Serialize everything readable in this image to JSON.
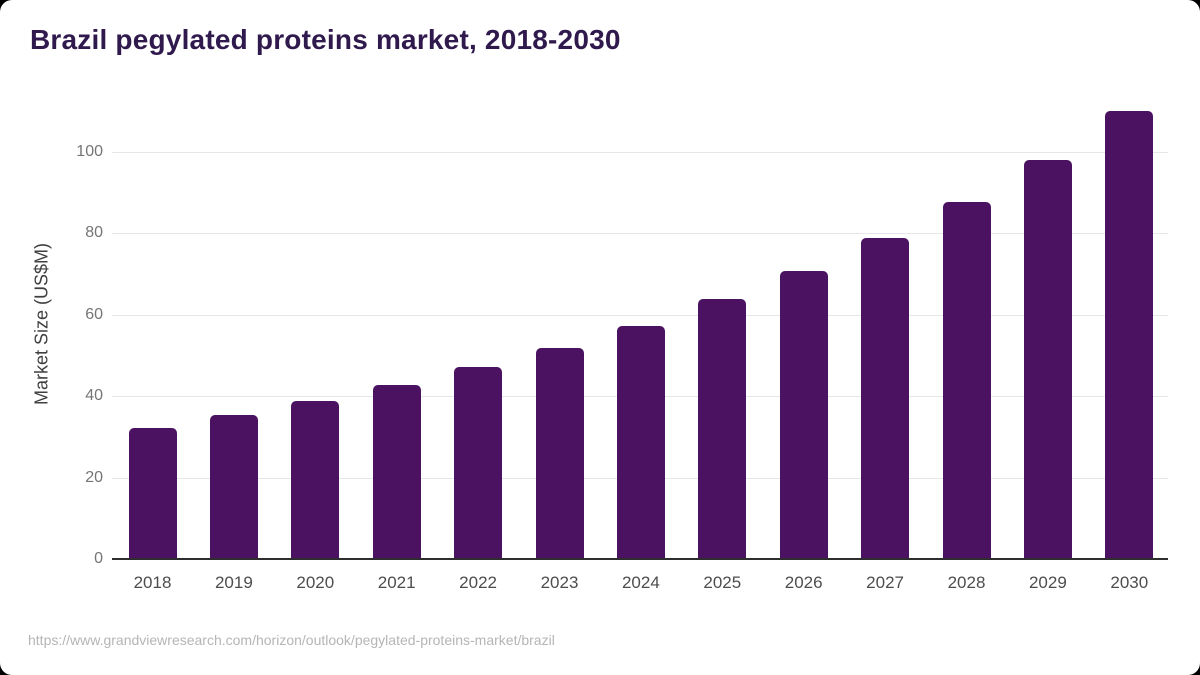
{
  "page": {
    "title": "Brazil pegylated proteins market, 2018-2030",
    "source_url": "https://www.grandviewresearch.com/horizon/outlook/pegylated-proteins-market/brazil"
  },
  "chart_data": {
    "type": "bar",
    "title": "Brazil pegylated proteins market, 2018-2030",
    "xlabel": "",
    "ylabel": "Market Size (US$M)",
    "categories": [
      "2018",
      "2019",
      "2020",
      "2021",
      "2022",
      "2023",
      "2024",
      "2025",
      "2026",
      "2027",
      "2028",
      "2029",
      "2030"
    ],
    "values": [
      32.1,
      35.3,
      38.7,
      42.7,
      47.0,
      51.9,
      57.3,
      63.8,
      70.7,
      78.7,
      87.6,
      97.8,
      109.9
    ],
    "yticks": [
      0,
      20,
      40,
      60,
      80,
      100
    ],
    "ylim": [
      0,
      112
    ],
    "grid": true,
    "legend": false,
    "colors": {
      "bar": "#4a1260",
      "title": "#301a4d",
      "axis_line": "#2e2e2e",
      "gridline": "#e6e6e6",
      "y_tick_label": "#757575",
      "x_tick_label": "#4d4d4d",
      "y_axis_title": "#3f3f3f",
      "source_url": "#b5b5b5"
    }
  }
}
